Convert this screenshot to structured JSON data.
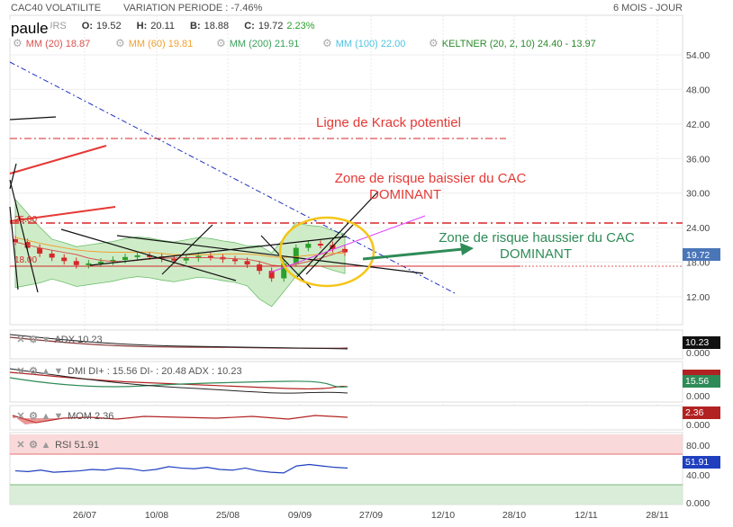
{
  "header": {
    "instrument": "CAC40 VOLATILITE",
    "variation": "VARIATION PERIODE : -7.46%",
    "period": "6 MOIS - JOUR"
  },
  "ohlc": {
    "label": "COURS",
    "open_label": "O:",
    "open": "19.52",
    "high_label": "H:",
    "high": "20.11",
    "low_label": "B:",
    "low": "18.88",
    "close_label": "C:",
    "close": "19.72",
    "change": "2.23%"
  },
  "overlay_text": "paule",
  "legend": [
    {
      "text": "MM (20) 18.87",
      "color": "#d9534f"
    },
    {
      "text": "MM (60) 19.81",
      "color": "#f0a030"
    },
    {
      "text": "MM (200) 21.91",
      "color": "#3aa05a"
    },
    {
      "text": "MM (100) 22.00",
      "color": "#4fc3e0"
    },
    {
      "text": "KELTNER (20, 2, 10) 24.40 - 13.97",
      "color": "#2a8a2a"
    }
  ],
  "annotations": {
    "krack": "Ligne de Krack potentiel",
    "baissier_line1": "Zone de risque baissier du CAC",
    "baissier_line2": "DOMINANT",
    "haussier_line1": "Zone de risque haussier du CAC",
    "haussier_line2": "DOMINANT",
    "level_25": "25.00",
    "level_18": "18.00"
  },
  "price_axis": {
    "ticks": [
      "54.00",
      "48.00",
      "42.00",
      "36.00",
      "30.00",
      "24.00",
      "18.00",
      "12.00"
    ],
    "last_value": "19.72"
  },
  "x_axis": {
    "ticks": [
      "26/07",
      "10/08",
      "25/08",
      "09/09",
      "27/09",
      "12/10",
      "28/10",
      "12/11",
      "28/11"
    ]
  },
  "indicators": {
    "adx": {
      "label": "ADX 10.23",
      "value": "10.23",
      "ticks": [
        "0.000"
      ]
    },
    "dmi": {
      "label": "DMI DI+ : 15.56 DI- : 20.48 ADX : 10.23",
      "value_top": "20.48",
      "value": "15.56",
      "ticks": [
        "0.000"
      ]
    },
    "mom": {
      "label": "MOM 2.36",
      "value": "2.36",
      "ticks": [
        "0.000"
      ]
    },
    "rsi": {
      "label": "RSI 51.91",
      "value": "51.91",
      "ticks": [
        "80.00",
        "40.00",
        "0.000"
      ]
    }
  },
  "colors": {
    "up": "#2ca02c",
    "down": "#d62728",
    "krack": "#d62728",
    "rsi_line": "#1f3fbf",
    "highlight_ellipse": "#f5c518",
    "arrow": "#2e8b57",
    "keltner_fill": "#b9e3b0"
  },
  "chart_data": [
    {
      "type": "candlestick",
      "title": "CAC40 VOLATILITE",
      "x": [
        "26/07",
        "10/08",
        "25/08",
        "09/09",
        "27/09"
      ],
      "ylim": [
        9,
        58
      ],
      "close_last": 19.72,
      "approx_closes": [
        21.5,
        20.5,
        19.5,
        18.8,
        18.2,
        17.5,
        17.8,
        18.1,
        18.4,
        18.9,
        19.2,
        19.0,
        18.6,
        18.3,
        18.7,
        19.1,
        18.9,
        18.5,
        18.2,
        17.6,
        16.5,
        15.2,
        17.8,
        20.5,
        21.2,
        21.0,
        20.3,
        19.72
      ],
      "series": [
        {
          "name": "MM (20)",
          "last": 18.87
        },
        {
          "name": "MM (60)",
          "last": 19.81
        },
        {
          "name": "MM (200)",
          "last": 21.91
        },
        {
          "name": "MM (100)",
          "last": 22.0
        },
        {
          "name": "KELTNER (20, 2, 10)",
          "upper": 24.4,
          "lower": 13.97
        }
      ],
      "horizontal_lines": [
        {
          "label": "Ligne de Krack potentiel",
          "value": 40
        },
        {
          "value": 25
        },
        {
          "value": 18
        }
      ]
    },
    {
      "type": "line",
      "title": "ADX",
      "last": 10.23
    },
    {
      "type": "line",
      "title": "DMI",
      "series": [
        {
          "name": "DI+",
          "last": 15.56
        },
        {
          "name": "DI-",
          "last": 20.48
        },
        {
          "name": "ADX",
          "last": 10.23
        }
      ]
    },
    {
      "type": "line",
      "title": "MOM",
      "last": 2.36
    },
    {
      "type": "line",
      "title": "RSI",
      "last": 51.91,
      "ylim": [
        0,
        100
      ]
    }
  ]
}
